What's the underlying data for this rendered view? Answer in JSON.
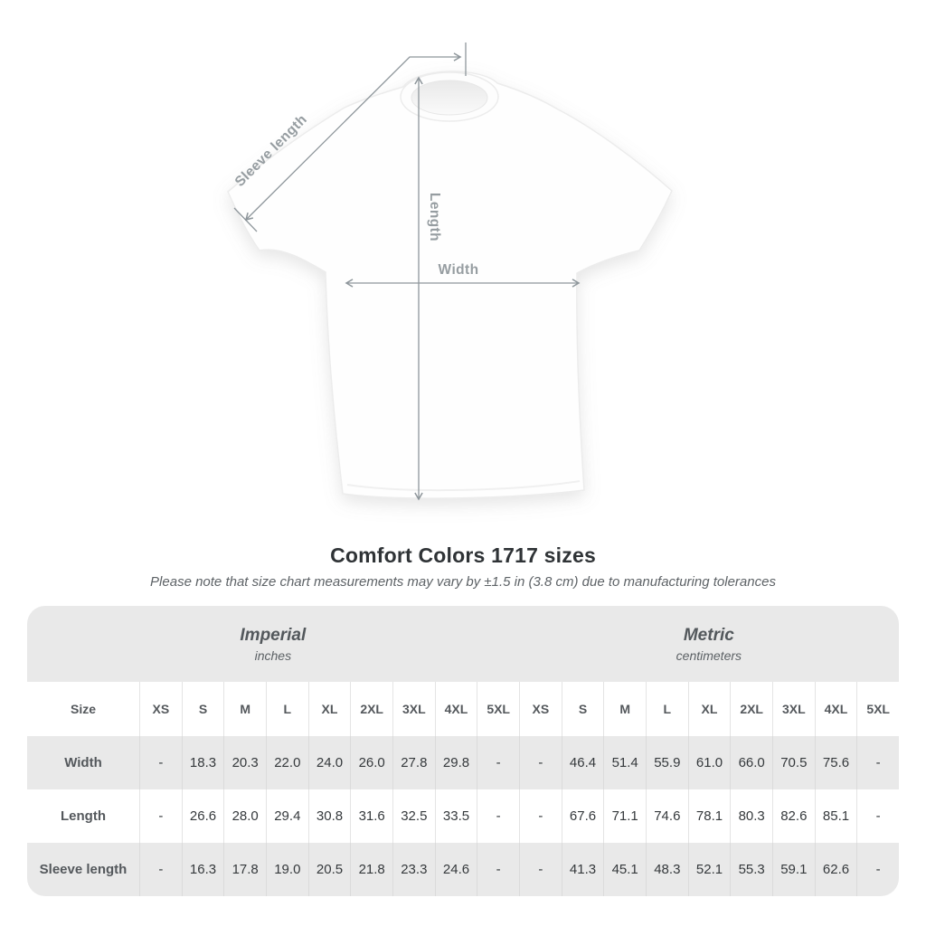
{
  "heading": {
    "title": "Comfort Colors 1717 sizes",
    "subtitle": "Please note that size chart measurements may vary by ±1.5 in (3.8 cm) due to manufacturing tolerances"
  },
  "diagram": {
    "labels": {
      "sleeve_length": "Sleeve length",
      "length": "Length",
      "width": "Width"
    }
  },
  "size_chart": {
    "size_col_header": "Size",
    "unit_groups": [
      {
        "label": "Imperial",
        "sublabel": "inches"
      },
      {
        "label": "Metric",
        "sublabel": "centimeters"
      }
    ],
    "sizes": [
      "XS",
      "S",
      "M",
      "L",
      "XL",
      "2XL",
      "3XL",
      "4XL",
      "5XL"
    ],
    "rows": [
      {
        "label": "Width",
        "imperial": [
          "-",
          "18.3",
          "20.3",
          "22.0",
          "24.0",
          "26.0",
          "27.8",
          "29.8",
          "-"
        ],
        "metric": [
          "-",
          "46.4",
          "51.4",
          "55.9",
          "61.0",
          "66.0",
          "70.5",
          "75.6",
          "-"
        ]
      },
      {
        "label": "Length",
        "imperial": [
          "-",
          "26.6",
          "28.0",
          "29.4",
          "30.8",
          "31.6",
          "32.5",
          "33.5",
          "-"
        ],
        "metric": [
          "-",
          "67.6",
          "71.1",
          "74.6",
          "78.1",
          "80.3",
          "82.6",
          "85.1",
          "-"
        ]
      },
      {
        "label": "Sleeve length",
        "imperial": [
          "-",
          "16.3",
          "17.8",
          "19.0",
          "20.5",
          "21.8",
          "23.3",
          "24.6",
          "-"
        ],
        "metric": [
          "-",
          "41.3",
          "45.1",
          "48.3",
          "52.1",
          "55.3",
          "59.1",
          "62.6",
          "-"
        ]
      }
    ]
  },
  "chart_data": {
    "type": "table",
    "title": "Comfort Colors 1717 sizes",
    "note": "Please note that size chart measurements may vary by ±1.5 in (3.8 cm) due to manufacturing tolerances",
    "columns": [
      "Size",
      "XS",
      "S",
      "M",
      "L",
      "XL",
      "2XL",
      "3XL",
      "4XL",
      "5XL"
    ],
    "unit_groups": [
      "Imperial (inches)",
      "Metric (centimeters)"
    ],
    "rows": [
      {
        "measurement": "Width",
        "imperial_in": [
          null,
          18.3,
          20.3,
          22.0,
          24.0,
          26.0,
          27.8,
          29.8,
          null
        ],
        "metric_cm": [
          null,
          46.4,
          51.4,
          55.9,
          61.0,
          66.0,
          70.5,
          75.6,
          null
        ]
      },
      {
        "measurement": "Length",
        "imperial_in": [
          null,
          26.6,
          28.0,
          29.4,
          30.8,
          31.6,
          32.5,
          33.5,
          null
        ],
        "metric_cm": [
          null,
          67.6,
          71.1,
          74.6,
          78.1,
          80.3,
          82.6,
          85.1,
          null
        ]
      },
      {
        "measurement": "Sleeve length",
        "imperial_in": [
          null,
          16.3,
          17.8,
          19.0,
          20.5,
          21.8,
          23.3,
          24.6,
          null
        ],
        "metric_cm": [
          null,
          41.3,
          45.1,
          48.3,
          52.1,
          55.3,
          59.1,
          62.6,
          null
        ]
      }
    ],
    "colors": {
      "band_bg": "#e9e9e9",
      "stripe_bg": "#e9e9e9",
      "measure_line": "#8e969b",
      "title_text": "#2f3336",
      "value_text": "#35393c"
    }
  }
}
